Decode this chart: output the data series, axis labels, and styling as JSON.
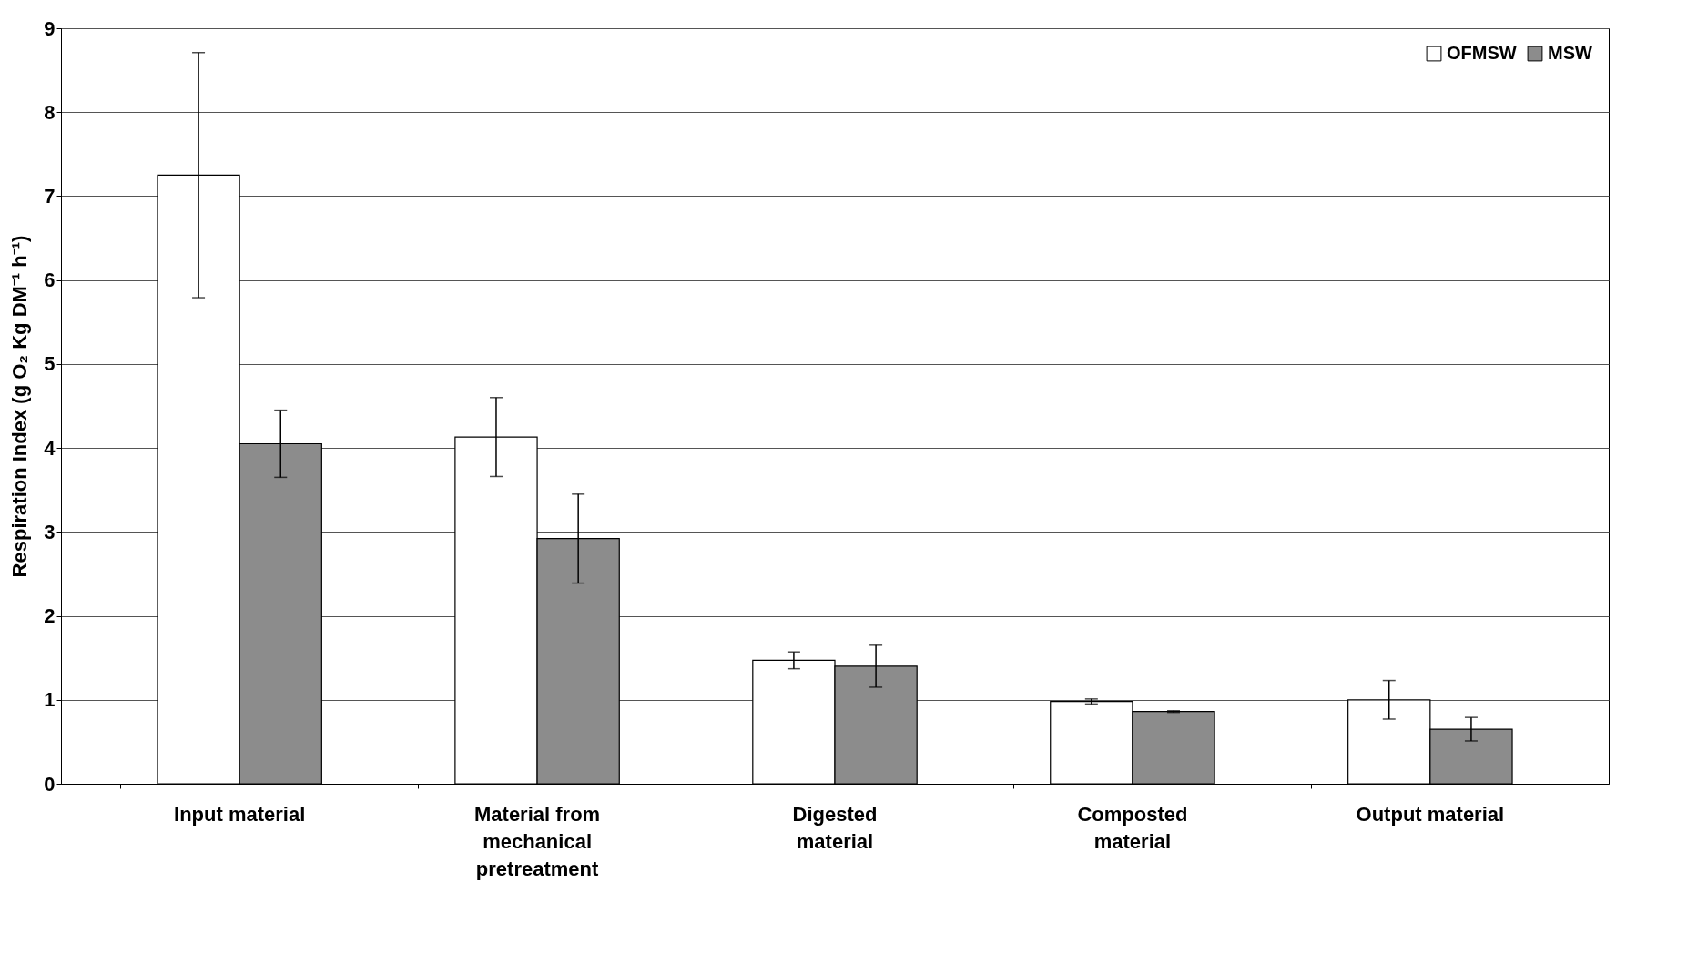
{
  "chart_data": {
    "type": "bar",
    "ylabel": "Respiration Index (g O₂ Kg DM⁻¹ h⁻¹)",
    "categories": [
      "Input material",
      "Material from mechanical pretreatment",
      "Digested material",
      "Composted material",
      "Output material"
    ],
    "series": [
      {
        "name": "OFMSW",
        "color": "#ffffff",
        "values": [
          7.25,
          4.13,
          1.47,
          0.98,
          1.0
        ],
        "errors": [
          1.46,
          0.47,
          0.1,
          0.03,
          0.23
        ]
      },
      {
        "name": "MSW",
        "color": "#8c8c8c",
        "values": [
          4.05,
          2.92,
          1.4,
          0.86,
          0.65
        ],
        "errors": [
          0.4,
          0.53,
          0.25,
          0.01,
          0.14
        ]
      }
    ],
    "ylim": [
      0,
      9
    ],
    "yticks": [
      0,
      1,
      2,
      3,
      4,
      5,
      6,
      7,
      8,
      9
    ],
    "grid": "y",
    "legend": "top right"
  }
}
